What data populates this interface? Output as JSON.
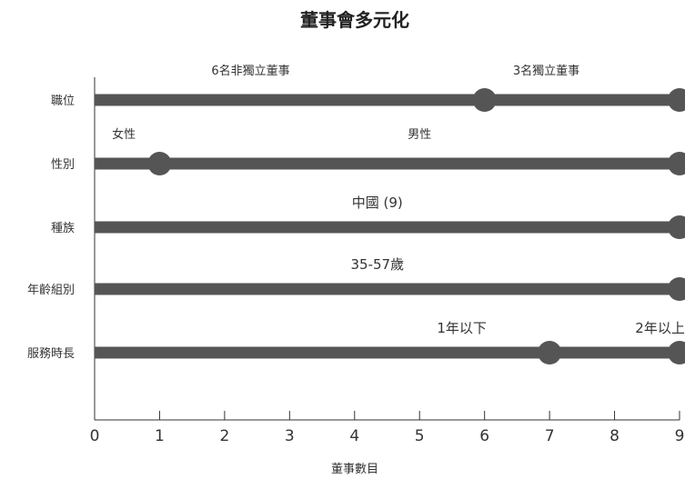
{
  "chart_data": {
    "type": "dot-range",
    "title": "董事會多元化",
    "xlabel": "董事數目",
    "xlim": [
      0,
      9
    ],
    "xticks": [
      "0",
      "1",
      "2",
      "3",
      "4",
      "5",
      "6",
      "7",
      "8",
      "9"
    ],
    "bar_color": "#555555",
    "rows": [
      {
        "category": "職位",
        "range": [
          0,
          9
        ],
        "markers": [
          6,
          9
        ],
        "annotations": [
          {
            "text": "6名非獨立董事",
            "x": 2.4,
            "size": "small"
          },
          {
            "text": "3名獨立董事",
            "x": 6.95,
            "size": "small"
          }
        ]
      },
      {
        "category": "性別",
        "range": [
          0,
          9
        ],
        "markers": [
          1,
          9
        ],
        "annotations": [
          {
            "text": "女性",
            "x": 0.45,
            "size": "small"
          },
          {
            "text": "男性",
            "x": 5.0,
            "size": "small"
          }
        ]
      },
      {
        "category": "種族",
        "range": [
          0,
          9
        ],
        "markers": [
          9
        ],
        "annotations": [
          {
            "text": "中國 (9)",
            "x": 4.35,
            "size": "large"
          }
        ]
      },
      {
        "category": "年齡組別",
        "range": [
          0,
          9
        ],
        "markers": [
          9
        ],
        "annotations": [
          {
            "text": "35-57歲",
            "x": 4.35,
            "size": "large"
          }
        ]
      },
      {
        "category": "服務時長",
        "range": [
          0,
          9
        ],
        "markers": [
          7,
          9
        ],
        "annotations": [
          {
            "text": "1年以下",
            "x": 5.65,
            "size": "large"
          },
          {
            "text": "2年以上",
            "x": 8.7,
            "size": "large"
          }
        ]
      }
    ]
  }
}
